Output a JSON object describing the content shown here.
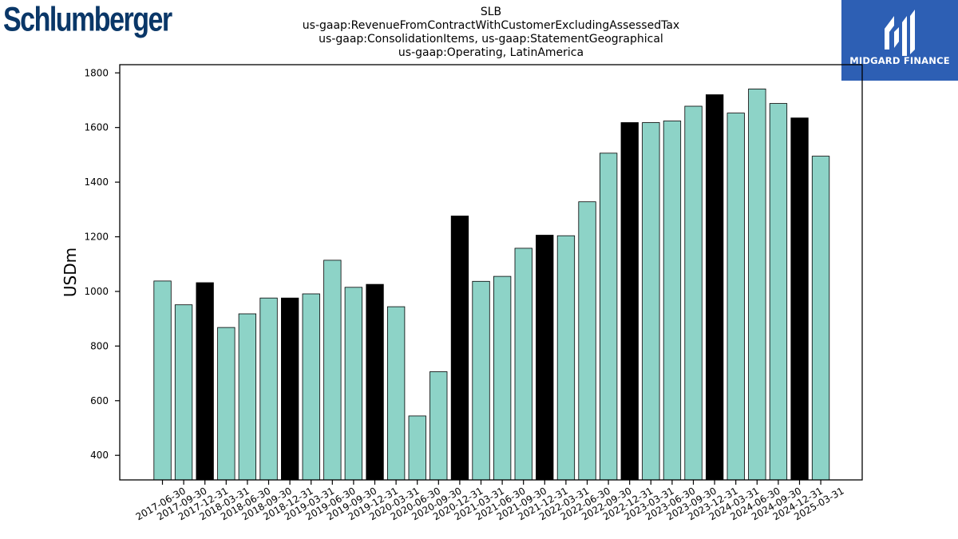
{
  "brand": {
    "logo_text": "Schlumberger"
  },
  "partner": {
    "name": "MIDGARD FINANCE",
    "icon": "midgard-logo-icon",
    "bg_color": "#2d5fb4"
  },
  "chart_data": {
    "type": "bar",
    "title_lines": [
      "SLB",
      "us-gaap:RevenueFromContractWithCustomerExcludingAssessedTax",
      "us-gaap:ConsolidationItems, us-gaap:StatementGeographical",
      "us-gaap:Operating, LatinAmerica"
    ],
    "xlabel": "",
    "ylabel": "USDm",
    "ylim": [
      310,
      1830
    ],
    "yticks": [
      400,
      600,
      800,
      1000,
      1200,
      1400,
      1600,
      1800
    ],
    "grid": false,
    "colors": {
      "quarter": "#8dd3c7",
      "year_end": "#000000"
    },
    "categories": [
      "2017-06-30",
      "2017-09-30",
      "2017-12-31",
      "2018-03-31",
      "2018-06-30",
      "2018-09-30",
      "2018-12-31",
      "2019-03-31",
      "2019-06-30",
      "2019-09-30",
      "2019-12-31",
      "2020-03-31",
      "2020-06-30",
      "2020-09-30",
      "2020-12-31",
      "2021-03-31",
      "2021-06-30",
      "2021-09-30",
      "2021-12-31",
      "2022-03-31",
      "2022-06-30",
      "2022-09-30",
      "2022-12-31",
      "2023-03-31",
      "2023-06-30",
      "2023-09-30",
      "2023-12-31",
      "2024-03-31",
      "2024-06-30",
      "2024-09-30",
      "2024-12-31",
      "2025-03-31"
    ],
    "values": [
      1038,
      951,
      1032,
      868,
      918,
      976,
      976,
      991,
      1114,
      1015,
      1026,
      944,
      544,
      706,
      1276,
      1037,
      1055,
      1158,
      1206,
      1204,
      1328,
      1506,
      1618,
      1618,
      1624,
      1678,
      1720,
      1653,
      1741,
      1688,
      1635,
      1495
    ],
    "year_end": [
      false,
      false,
      true,
      false,
      false,
      false,
      true,
      false,
      false,
      false,
      true,
      false,
      false,
      false,
      true,
      false,
      false,
      false,
      true,
      false,
      false,
      false,
      true,
      false,
      false,
      false,
      true,
      false,
      false,
      false,
      true,
      false
    ]
  }
}
